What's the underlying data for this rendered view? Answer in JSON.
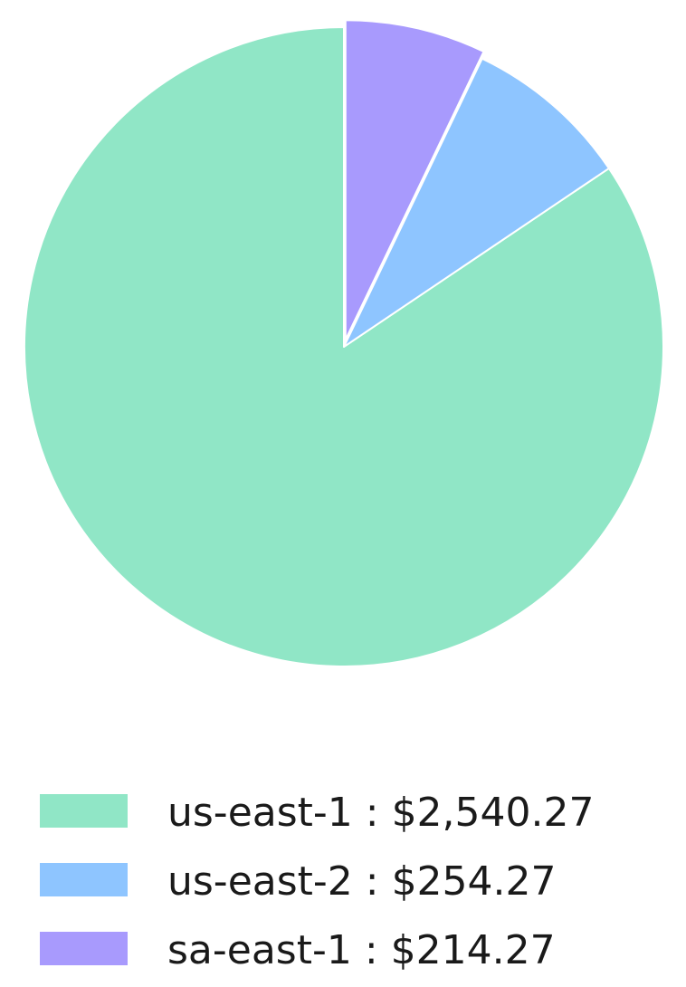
{
  "chart_data": {
    "type": "pie",
    "start_angle": "top",
    "direction": "counterclockwise",
    "legend_position": "bottom",
    "slices": [
      {
        "label": "us-east-1",
        "value": 2540.27,
        "display": "us-east-1 : $2,540.27",
        "color": "#90e6c6",
        "explode": false
      },
      {
        "label": "us-east-2",
        "value": 254.27,
        "display": "us-east-2 : $254.27",
        "color": "#8ec5ff",
        "explode": false
      },
      {
        "label": "sa-east-1",
        "value": 214.27,
        "display": "sa-east-1 : $214.27",
        "color": "#a89afd",
        "explode": true
      }
    ]
  }
}
